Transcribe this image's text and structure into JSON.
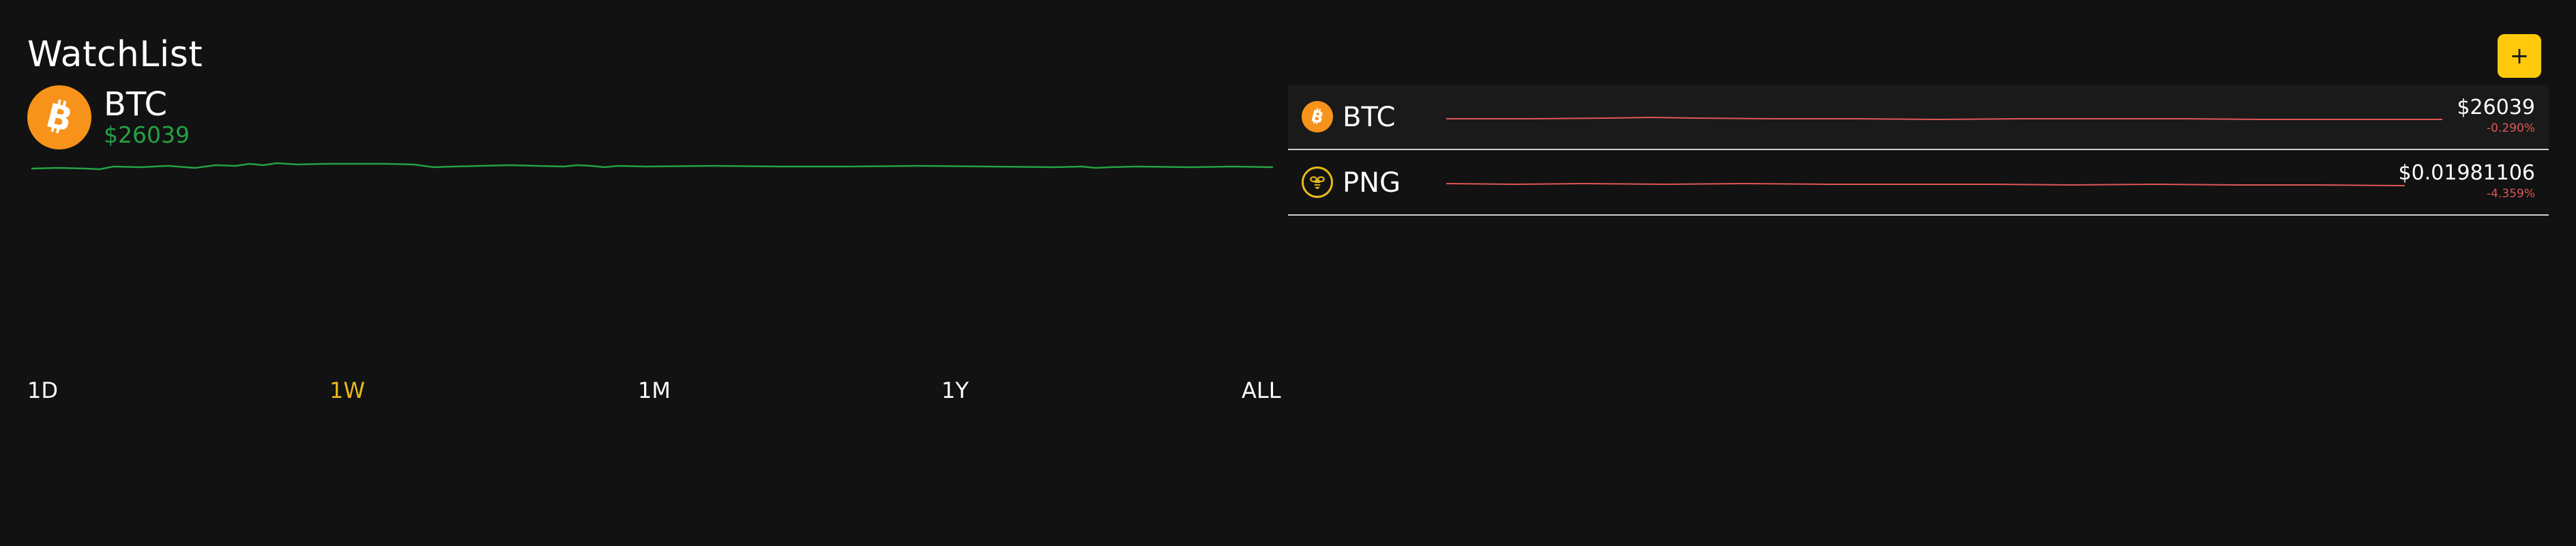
{
  "header": {
    "title": "WatchList",
    "add_button_label": "+"
  },
  "selected": {
    "symbol": "BTC",
    "price": "$26039",
    "icon": "bitcoin-icon",
    "chart_color": "#25a244"
  },
  "ranges": {
    "items": [
      "1D",
      "1W",
      "1M",
      "1Y",
      "ALL"
    ],
    "active": "1W",
    "active_color": "#e8b91a"
  },
  "watchlist": {
    "items": [
      {
        "symbol": "BTC",
        "icon": "bitcoin-icon",
        "price": "$26039",
        "change": "-0.290%",
        "trend_color": "#e05656"
      },
      {
        "symbol": "PNG",
        "icon": "bee-icon",
        "price": "$0.01981106",
        "change": "-4.359%",
        "trend_color": "#e05656"
      }
    ]
  },
  "colors": {
    "background": "#121212",
    "accent": "#ffc90b",
    "positive": "#25a244",
    "negative": "#e05656"
  }
}
